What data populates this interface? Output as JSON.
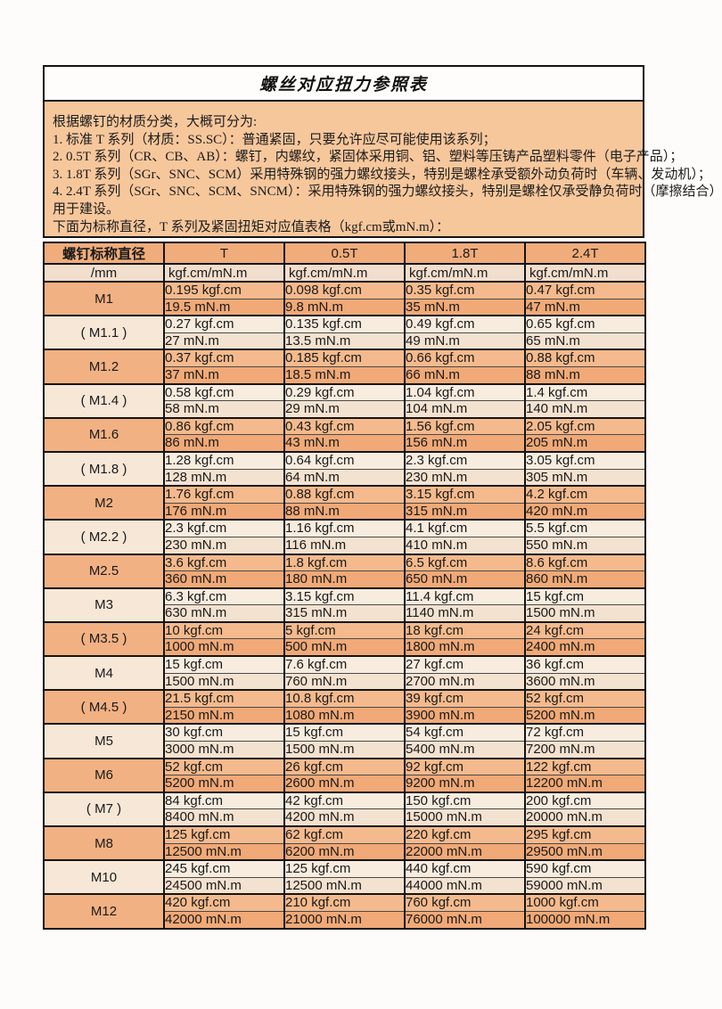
{
  "title": "螺丝对应扭力参照表",
  "intro": {
    "lines": [
      "根据螺钉的材质分类，大概可分为:",
      "1.  标准 T 系列（材质：SS.SC）：普通紧固，只要允许应尽可能使用该系列；",
      "2.  0.5T 系列（CR、CB、AB）：螺钉，内螺纹，紧固体采用铜、铝、塑料等压铸产品塑料零件（电子产品）；",
      "3.  1.8T 系列（SGr、SNC、SCM）采用特殊钢的强力螺纹接头，特别是螺栓承受额外动负荷时（车辆、发动机）；",
      "4.  2.4T 系列（SGr、SNC、SCM、SNCM）：采用特殊钢的强力螺纹接头，特别是螺栓仅承受静负荷时（摩擦结合）",
      "用于建设。",
      "下面为标称直径，T 系列及紧固扭矩对应值表格（kgf.cm或mN.m）："
    ]
  },
  "table": {
    "corner_header": "螺钉标称直径",
    "corner_subheader": "/mm",
    "columns": [
      "T",
      "0.5T",
      "1.8T",
      "2.4T"
    ],
    "unit_header": "kgf.cm/mN.m",
    "rows": [
      {
        "label": "M1",
        "kgf": [
          "0.195 kgf.cm",
          "0.098 kgf.cm",
          "0.35 kgf.cm",
          "0.47 kgf.cm"
        ],
        "mn": [
          "19.5 mN.m",
          "9.8 mN.m",
          "35 mN.m",
          "47 mN.m"
        ]
      },
      {
        "label": "( M1.1 )",
        "kgf": [
          "0.27 kgf.cm",
          "0.135 kgf.cm",
          "0.49 kgf.cm",
          "0.65 kgf.cm"
        ],
        "mn": [
          "27 mN.m",
          "13.5 mN.m",
          "49 mN.m",
          "65 mN.m"
        ]
      },
      {
        "label": "M1.2",
        "kgf": [
          "0.37 kgf.cm",
          "0.185 kgf.cm",
          "0.66 kgf.cm",
          "0.88 kgf.cm"
        ],
        "mn": [
          "37 mN.m",
          "18.5 mN.m",
          "66 mN.m",
          "88 mN.m"
        ]
      },
      {
        "label": "( M1.4 )",
        "kgf": [
          "0.58 kgf.cm",
          "0.29 kgf.cm",
          "1.04 kgf.cm",
          "1.4 kgf.cm"
        ],
        "mn": [
          "58 mN.m",
          "29 mN.m",
          "104 mN.m",
          "140 mN.m"
        ]
      },
      {
        "label": "M1.6",
        "kgf": [
          "0.86 kgf.cm",
          "0.43 kgf.cm",
          "1.56 kgf.cm",
          "2.05 kgf.cm"
        ],
        "mn": [
          "86 mN.m",
          "43 mN.m",
          "156 mN.m",
          "205 mN.m"
        ]
      },
      {
        "label": "( M1.8 )",
        "kgf": [
          "1.28 kgf.cm",
          "0.64 kgf.cm",
          "2.3 kgf.cm",
          "3.05 kgf.cm"
        ],
        "mn": [
          "128 mN.m",
          "64 mN.m",
          "230 mN.m",
          "305 mN.m"
        ]
      },
      {
        "label": "M2",
        "kgf": [
          "1.76 kgf.cm",
          "0.88 kgf.cm",
          "3.15 kgf.cm",
          "4.2 kgf.cm"
        ],
        "mn": [
          "176 mN.m",
          "88 mN.m",
          "315 mN.m",
          "420 mN.m"
        ]
      },
      {
        "label": "( M2.2 )",
        "kgf": [
          "2.3 kgf.cm",
          "1.16 kgf.cm",
          "4.1 kgf.cm",
          "5.5 kgf.cm"
        ],
        "mn": [
          "230 mN.m",
          "116 mN.m",
          "410 mN.m",
          "550 mN.m"
        ]
      },
      {
        "label": "M2.5",
        "kgf": [
          "3.6 kgf.cm",
          "1.8 kgf.cm",
          "6.5 kgf.cm",
          "8.6 kgf.cm"
        ],
        "mn": [
          "360 mN.m",
          "180 mN.m",
          "650 mN.m",
          "860 mN.m"
        ]
      },
      {
        "label": "M3",
        "kgf": [
          "6.3 kgf.cm",
          "3.15 kgf.cm",
          "11.4 kgf.cm",
          "15 kgf.cm"
        ],
        "mn": [
          "630 mN.m",
          "315 mN.m",
          "1140 mN.m",
          "1500 mN.m"
        ]
      },
      {
        "label": "( M3.5 )",
        "kgf": [
          "10 kgf.cm",
          "5 kgf.cm",
          "18 kgf.cm",
          "24 kgf.cm"
        ],
        "mn": [
          "1000 mN.m",
          "500 mN.m",
          "1800 mN.m",
          "2400 mN.m"
        ]
      },
      {
        "label": "M4",
        "kgf": [
          "15 kgf.cm",
          "7.6 kgf.cm",
          "27 kgf.cm",
          "36 kgf.cm"
        ],
        "mn": [
          "1500 mN.m",
          "760 mN.m",
          "2700 mN.m",
          "3600 mN.m"
        ]
      },
      {
        "label": "( M4.5 )",
        "kgf": [
          "21.5 kgf.cm",
          "10.8 kgf.cm",
          "39 kgf.cm",
          "52 kgf.cm"
        ],
        "mn": [
          "2150 mN.m",
          "1080 mN.m",
          "3900 mN.m",
          "5200 mN.m"
        ]
      },
      {
        "label": "M5",
        "kgf": [
          "30 kgf.cm",
          "15 kgf.cm",
          "54 kgf.cm",
          "72 kgf.cm"
        ],
        "mn": [
          "3000 mN.m",
          "1500 mN.m",
          "5400 mN.m",
          "7200 mN.m"
        ]
      },
      {
        "label": "M6",
        "kgf": [
          "52 kgf.cm",
          "26 kgf.cm",
          "92 kgf.cm",
          "122 kgf.cm"
        ],
        "mn": [
          "5200 mN.m",
          "2600 mN.m",
          "9200 mN.m",
          "12200 mN.m"
        ]
      },
      {
        "label": "( M7 )",
        "kgf": [
          "84 kgf.cm",
          "42 kgf.cm",
          "150 kgf.cm",
          "200 kgf.cm"
        ],
        "mn": [
          "8400 mN.m",
          "4200 mN.m",
          "15000 mN.m",
          "20000 mN.m"
        ]
      },
      {
        "label": "M8",
        "kgf": [
          "125 kgf.cm",
          "62 kgf.cm",
          "220 kgf.cm",
          "295 kgf.cm"
        ],
        "mn": [
          "12500 mN.m",
          "6200 mN.m",
          "22000 mN.m",
          "29500 mN.m"
        ]
      },
      {
        "label": "M10",
        "kgf": [
          "245 kgf.cm",
          "125 kgf.cm",
          "440 kgf.cm",
          "590 kgf.cm"
        ],
        "mn": [
          "24500 mN.m",
          "12500 mN.m",
          "44000 mN.m",
          "59000 mN.m"
        ]
      },
      {
        "label": "M12",
        "kgf": [
          "420 kgf.cm",
          "210 kgf.cm",
          "760 kgf.cm",
          "1000 kgf.cm"
        ],
        "mn": [
          "42000 mN.m",
          "21000 mN.m",
          "76000 mN.m",
          "100000 mN.m"
        ]
      }
    ]
  },
  "colors": {
    "row_orange_kgf": "#f4ba8d",
    "row_orange_mn": "#f0a977",
    "row_orange_label": "#f1b183",
    "row_cream_kgf": "#f8ecdf",
    "row_cream_mn": "#f4e2d0",
    "row_cream_label": "#f6e7d7",
    "intro_background": "#f7c79c",
    "header_background": "#f0ac7a",
    "subheader_background": "#f2decd",
    "border": "#141414"
  }
}
